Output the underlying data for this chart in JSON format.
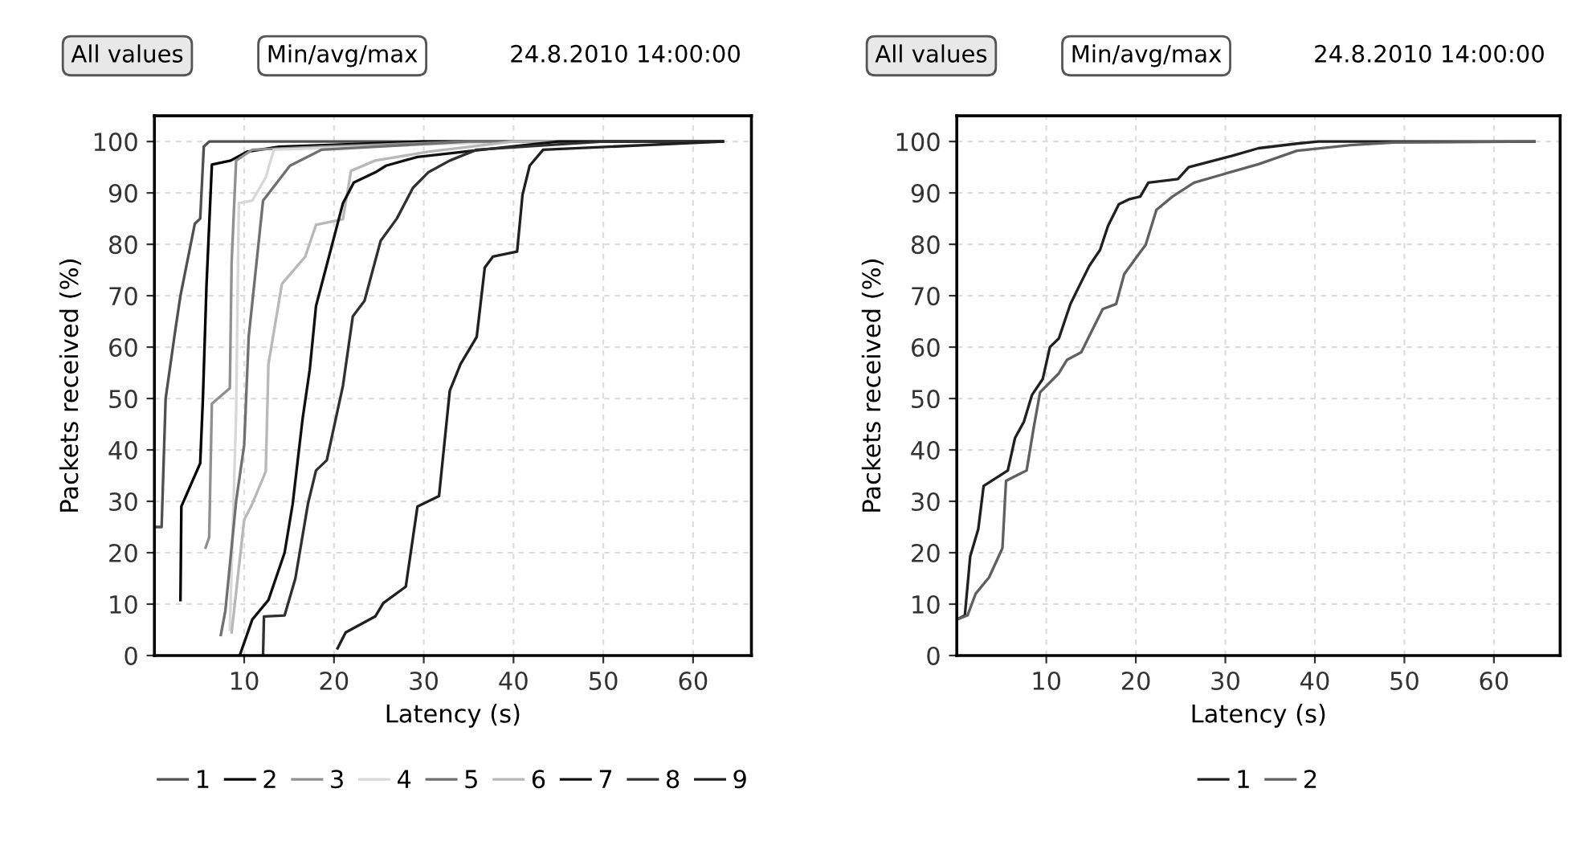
{
  "chart_data": [
    {
      "type": "line",
      "xlabel": "Latency (s)",
      "ylabel": "Packets received (%)",
      "xlim": [
        0,
        66.5
      ],
      "ylim": [
        0,
        105
      ],
      "xticks": [
        10,
        20,
        30,
        40,
        50,
        60
      ],
      "yticks": [
        0,
        10,
        20,
        30,
        40,
        50,
        60,
        70,
        80,
        90,
        100
      ],
      "grid": true,
      "legend": "bottom",
      "line_style": "solid",
      "marker": "none",
      "annotations": [
        "All values",
        "Min/avg/max",
        "24.8.2010 14:00:00"
      ],
      "series": [
        {
          "name": "1",
          "color": "#505050",
          "x": [
            0,
            0.8,
            1.25,
            2.3,
            2.9,
            4.5,
            5.1,
            5.5,
            6.1,
            63.3
          ],
          "values": [
            25,
            25,
            50,
            63,
            70,
            84,
            85,
            99,
            100,
            100
          ]
        },
        {
          "name": "2",
          "color": "#000000",
          "x": [
            2.9,
            3.0,
            5.1,
            5.4,
            5.8,
            6.4,
            8.5,
            10.3,
            13.9,
            30,
            63.3
          ],
          "values": [
            10.8,
            29,
            37.4,
            50,
            72,
            95.5,
            96.3,
            98,
            99,
            100,
            100
          ]
        },
        {
          "name": "3",
          "color": "#909090",
          "x": [
            5.7,
            6.1,
            6.4,
            8.4,
            8.6,
            9.1,
            10.9,
            18.6,
            35,
            63.3
          ],
          "values": [
            21,
            23,
            49,
            52,
            76.5,
            96.3,
            98.4,
            99,
            100,
            100
          ]
        },
        {
          "name": "4",
          "color": "#d8d8d8",
          "x": [
            8.4,
            9.1,
            9.4,
            10.9,
            12.4,
            13.3,
            40,
            63.3
          ],
          "values": [
            5,
            47,
            88,
            88.5,
            93,
            98.4,
            100,
            100
          ]
        },
        {
          "name": "5",
          "color": "#707070",
          "x": [
            7.4,
            7.9,
            9.1,
            10,
            10.5,
            12.1,
            15.1,
            18.6,
            35,
            63.3
          ],
          "values": [
            4,
            8.7,
            30,
            41,
            62,
            88.5,
            95.3,
            98.4,
            100,
            100
          ]
        },
        {
          "name": "6",
          "color": "#b8b8b8",
          "x": [
            8.6,
            10,
            10.9,
            12.4,
            12.7,
            14.2,
            16.8,
            18,
            21,
            21.9,
            24.6,
            30.5,
            40,
            63.3
          ],
          "values": [
            4.5,
            26.4,
            29.5,
            35.8,
            56.7,
            72.3,
            77.6,
            83.8,
            84.9,
            94.3,
            96.3,
            98,
            100,
            100
          ]
        },
        {
          "name": "7",
          "color": "#101010",
          "x": [
            9.5,
            10.9,
            12.7,
            14.5,
            15.4,
            16.5,
            17.3,
            18,
            18.9,
            20.1,
            21,
            22.2,
            24.6,
            25.8,
            29.3,
            36.5,
            45,
            63.3
          ],
          "values": [
            0,
            7,
            10.8,
            20,
            29.5,
            46,
            55.6,
            68,
            74,
            82,
            88,
            92,
            94,
            95.3,
            97,
            98.4,
            100,
            100
          ]
        },
        {
          "name": "8",
          "color": "#303030",
          "x": [
            12.1,
            12.2,
            14.5,
            15.7,
            17.1,
            18,
            19.2,
            21,
            22.1,
            23.4,
            25.2,
            27,
            28.8,
            30.5,
            32.9,
            35.9,
            50,
            63.3
          ],
          "values": [
            0,
            7.6,
            7.8,
            15,
            29.5,
            36,
            38,
            52.5,
            66,
            69,
            80.7,
            85,
            91,
            94,
            96.3,
            98.4,
            100,
            100
          ]
        },
        {
          "name": "9",
          "color": "#202020",
          "x": [
            20.4,
            21.3,
            24.6,
            25.5,
            28,
            29.3,
            31.7,
            32.9,
            34.1,
            35.9,
            36.8,
            37.7,
            40.4,
            41,
            41.8,
            43.3,
            63.3
          ],
          "values": [
            1.4,
            4.5,
            7.6,
            10.2,
            13.4,
            29,
            31,
            51.5,
            56.7,
            62,
            75.5,
            77.6,
            78.6,
            89.6,
            95.3,
            98.4,
            100
          ]
        }
      ]
    },
    {
      "type": "line",
      "xlabel": "Latency (s)",
      "ylabel": "Packets received (%)",
      "xlim": [
        0,
        67.4
      ],
      "ylim": [
        0,
        105
      ],
      "xticks": [
        10,
        20,
        30,
        40,
        50,
        60
      ],
      "yticks": [
        0,
        10,
        20,
        30,
        40,
        50,
        60,
        70,
        80,
        90,
        100
      ],
      "grid": true,
      "legend": "bottom",
      "line_style": "solid",
      "marker": "none",
      "annotations": [
        "All values",
        "Min/avg/max",
        "24.8.2010 14:00:00"
      ],
      "series": [
        {
          "name": "1",
          "color": "#202020",
          "x": [
            0,
            0.9,
            1.5,
            2.4,
            3,
            5.7,
            6.5,
            7.5,
            8.4,
            9.6,
            10.4,
            11.4,
            12.7,
            13.6,
            14.8,
            16,
            16.9,
            18.1,
            19.3,
            20.5,
            21.4,
            24.7,
            25.9,
            30.7,
            33.7,
            38,
            40.4,
            64.5
          ],
          "values": [
            7,
            7.8,
            19.3,
            24.6,
            33,
            36,
            42.3,
            45.5,
            50.7,
            53.8,
            60,
            61.7,
            68.4,
            71.6,
            75.8,
            78.9,
            83.6,
            87.8,
            88.8,
            89.3,
            92,
            92.7,
            95,
            97.2,
            98.7,
            99.6,
            100,
            100
          ]
        },
        {
          "name": "2",
          "color": "#606060",
          "x": [
            0,
            1.2,
            2.1,
            3.6,
            5.1,
            5.5,
            7.8,
            8.6,
            9.3,
            11.4,
            12.3,
            13.9,
            15.1,
            16.3,
            17.8,
            18.7,
            20.2,
            21.1,
            22.3,
            24.1,
            26.5,
            29.5,
            33.7,
            38,
            44,
            48.8,
            64.5
          ],
          "values": [
            7,
            7.8,
            12,
            15.2,
            20.9,
            34,
            36,
            44.4,
            51.2,
            54.9,
            57.5,
            59,
            63.2,
            67.4,
            68.4,
            74.2,
            77.8,
            79.9,
            86.7,
            89.3,
            92,
            93.5,
            95.6,
            98.2,
            99.3,
            99.8,
            100
          ]
        }
      ]
    }
  ]
}
